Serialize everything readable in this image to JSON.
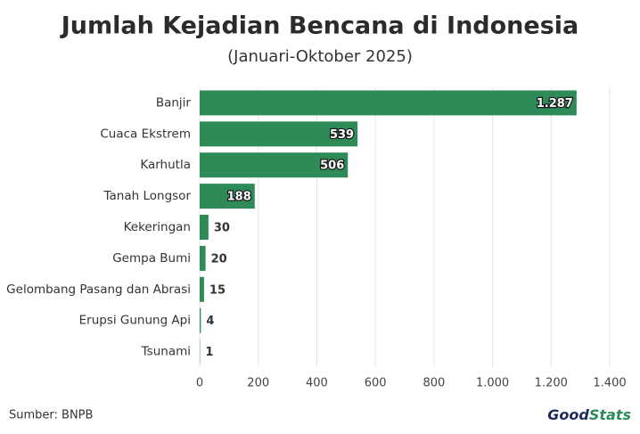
{
  "chart_data": {
    "type": "bar",
    "orientation": "horizontal",
    "title": "Jumlah Kejadian Bencana di Indonesia",
    "subtitle": "(Januari-Oktober 2025)",
    "categories": [
      "Banjir",
      "Cuaca Ekstrem",
      "Karhutla",
      "Tanah Longsor",
      "Kekeringan",
      "Gempa Bumi",
      "Gelombang Pasang dan Abrasi",
      "Erupsi Gunung Api",
      "Tsunami"
    ],
    "values": [
      1287,
      539,
      506,
      188,
      30,
      20,
      15,
      4,
      1
    ],
    "value_labels": [
      "1.287",
      "539",
      "506",
      "188",
      "30",
      "20",
      "15",
      "4",
      "1"
    ],
    "color": "#2e8b57",
    "xlim": [
      0,
      1400
    ],
    "xticks": [
      0,
      200,
      400,
      600,
      800,
      {
        "value": 1000,
        "label": "1.000"
      },
      {
        "value": 1200,
        "label": "1.200"
      },
      {
        "value": 1400,
        "label": "1.400"
      }
    ],
    "grid": true,
    "source": "Sumber: BNPB",
    "logo": [
      "Good",
      "Stats"
    ]
  }
}
